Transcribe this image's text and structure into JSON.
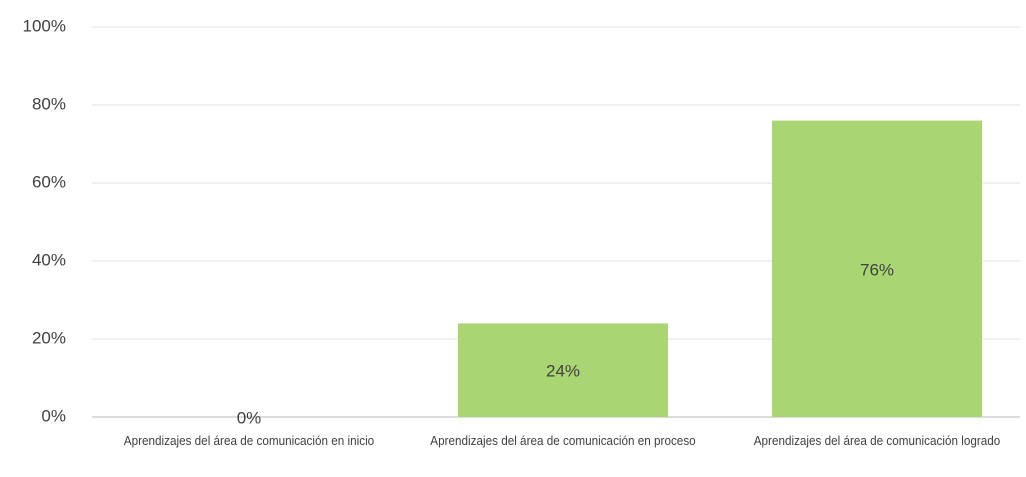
{
  "chart_data": {
    "type": "bar",
    "categories": [
      "Aprendizajes del área de comunicación en inicio",
      "Aprendizajes del área de comunicación en proceso",
      "Aprendizajes del área de comunicación logrado"
    ],
    "values": [
      0,
      24,
      76
    ],
    "value_labels": [
      "0%",
      "24%",
      "76%"
    ],
    "color": "#a9d673",
    "ylim": [
      0,
      100
    ],
    "yticks": [
      {
        "value": 0,
        "label": "0%"
      },
      {
        "value": 20,
        "label": "20%"
      },
      {
        "value": 40,
        "label": "40%"
      },
      {
        "value": 60,
        "label": "60%"
      },
      {
        "value": 80,
        "label": "80%"
      },
      {
        "value": 100,
        "label": "100%"
      }
    ],
    "grid": true
  }
}
